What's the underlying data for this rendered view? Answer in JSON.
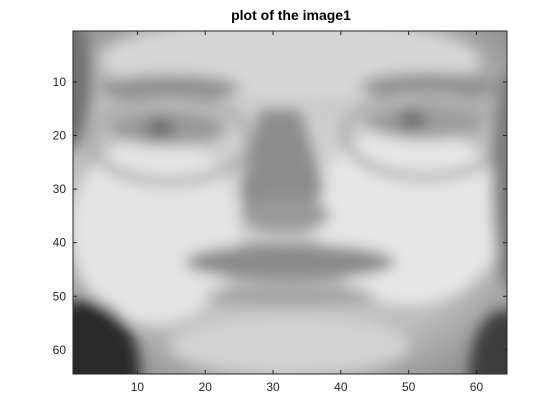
{
  "figure": {
    "title": "plot of the image1",
    "background_color": "#ffffff"
  },
  "chart_data": {
    "type": "heatmap",
    "title": "plot of the image1",
    "xlabel": "",
    "ylabel": "",
    "colormap": "gray",
    "grid": false,
    "y_reversed": true,
    "image_size": [
      64,
      64
    ],
    "xlim": [
      0.5,
      64.5
    ],
    "ylim": [
      0.5,
      64.5
    ],
    "xticks": [
      10,
      20,
      30,
      40,
      50,
      60
    ],
    "yticks": [
      10,
      20,
      30,
      40,
      50,
      60
    ],
    "xtick_labels": [
      "10",
      "20",
      "30",
      "40",
      "50",
      "60"
    ],
    "ytick_labels": [
      "10",
      "20",
      "30",
      "40",
      "50",
      "60"
    ]
  }
}
